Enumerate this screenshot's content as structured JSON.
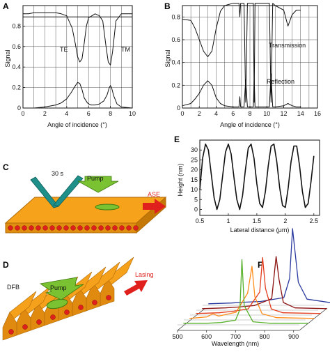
{
  "chart_data": [
    {
      "panel": "A",
      "type": "line",
      "xlabel": "Angle of incidence (°)",
      "ylabel": "Signal",
      "xlim": [
        0,
        10
      ],
      "ylim": [
        0,
        1
      ],
      "xticks": [
        0,
        2,
        4,
        6,
        8,
        10
      ],
      "yticks": [
        0,
        0.2,
        0.4,
        0.6,
        0.8
      ],
      "grid": true,
      "annotations": [
        "TE",
        "TM"
      ],
      "series": [
        {
          "x": [
            0,
            0.5,
            1,
            2,
            3,
            3.5,
            4,
            4.5,
            4.8,
            5,
            5.2,
            5.4,
            5.6,
            5.8,
            6,
            6.3,
            6.6,
            7,
            7.3,
            7.6,
            7.8,
            8,
            8.2,
            8.5,
            9,
            9.5,
            10
          ],
          "values": [
            0.92,
            0.92,
            0.93,
            0.93,
            0.93,
            0.92,
            0.9,
            0.78,
            0.62,
            0.5,
            0.45,
            0.48,
            0.63,
            0.8,
            0.88,
            0.9,
            0.92,
            0.9,
            0.85,
            0.6,
            0.45,
            0.42,
            0.55,
            0.85,
            0.92,
            0.92,
            0.92
          ]
        },
        {
          "x": [
            0,
            0.5,
            1,
            2,
            3,
            3.5,
            4,
            4.4,
            4.8,
            5,
            5.2,
            5.4,
            5.6,
            5.9,
            6.2,
            6.6,
            7,
            7.4,
            7.7,
            7.9,
            8,
            8.1,
            8.3,
            8.6,
            9,
            10
          ],
          "values": [
            0.89,
            0.89,
            0.89,
            0.89,
            0.89,
            0.89,
            0.89,
            0.89,
            0.89,
            0.89,
            0.89,
            0.89,
            0.89,
            0.89,
            0.89,
            0.89,
            0.89,
            0.89,
            0.89,
            0.89,
            0.89,
            0.89,
            0.89,
            0.89,
            0.89,
            0.89
          ]
        },
        {
          "x": [
            0,
            1,
            2,
            3,
            3.5,
            4,
            4.4,
            4.8,
            5,
            5.2,
            5.4,
            5.6,
            5.9,
            6.2,
            6.6,
            7,
            7.4,
            7.7,
            7.9,
            8,
            8.1,
            8.3,
            8.6,
            9,
            10
          ],
          "values": [
            0,
            0,
            0.01,
            0.03,
            0.05,
            0.09,
            0.15,
            0.22,
            0.25,
            0.24,
            0.18,
            0.1,
            0.05,
            0.03,
            0.03,
            0.04,
            0.07,
            0.13,
            0.2,
            0.22,
            0.2,
            0.12,
            0.04,
            0.01,
            0
          ]
        }
      ]
    },
    {
      "panel": "B",
      "type": "line",
      "xlabel": "Angle of incidence (°)",
      "ylabel": "Signal",
      "xlim": [
        0,
        16
      ],
      "ylim": [
        0,
        0.9
      ],
      "xticks": [
        0,
        2,
        4,
        6,
        8,
        10,
        12,
        14,
        16
      ],
      "yticks": [
        0,
        0.2,
        0.4,
        0.6,
        0.8
      ],
      "grid": true,
      "annotations": [
        "Transmission",
        "Reflection"
      ],
      "series": [
        {
          "name": "Transmission",
          "x": [
            0,
            1,
            1.5,
            2,
            2.5,
            3,
            3.5,
            4,
            4.5,
            5,
            6,
            6.7,
            6.8,
            6.9,
            7,
            7.3,
            7.5,
            7.7,
            8,
            8.2,
            8.4,
            8.5,
            8.6,
            8.8,
            9,
            10,
            10.3,
            10.5,
            10.7,
            11,
            12,
            12.5,
            13,
            13.5,
            14
          ],
          "values": [
            0.78,
            0.77,
            0.7,
            0.6,
            0.5,
            0.45,
            0.5,
            0.7,
            0.85,
            0.9,
            0.92,
            0.92,
            0.8,
            0.92,
            0.92,
            0.92,
            0.05,
            0.92,
            0.92,
            0.92,
            0.92,
            0.05,
            0.92,
            0.92,
            0.92,
            0.92,
            0.92,
            0.05,
            0.92,
            0.9,
            0.86,
            0.72,
            0.82,
            0.86,
            0.86
          ]
        },
        {
          "name": "Reflection",
          "x": [
            0,
            1,
            1.5,
            2,
            2.5,
            3,
            3.5,
            4,
            4.5,
            5,
            6,
            6.7,
            6.8,
            6.9,
            7,
            7.3,
            7.5,
            7.7,
            8,
            8.2,
            8.4,
            8.5,
            8.6,
            8.8,
            9,
            10,
            10.3,
            10.5,
            10.7,
            11,
            12,
            12.5,
            13,
            13.5,
            14
          ],
          "values": [
            0.02,
            0.04,
            0.08,
            0.13,
            0.2,
            0.24,
            0.2,
            0.09,
            0.04,
            0.02,
            0.01,
            0.01,
            0.1,
            0.01,
            0.01,
            0.01,
            0.25,
            0.01,
            0.01,
            0.01,
            0.01,
            0.28,
            0.01,
            0.01,
            0.01,
            0.01,
            0.01,
            0.3,
            0.01,
            0.01,
            0.02,
            0.04,
            0.02,
            0.01,
            0.01
          ]
        }
      ]
    },
    {
      "panel": "E",
      "type": "line",
      "xlabel": "Lateral distance (μm)",
      "ylabel": "Height (nm)",
      "xlim": [
        0.5,
        2.6
      ],
      "ylim": [
        -3,
        35
      ],
      "xticks": [
        0.5,
        1,
        1.5,
        2,
        2.5
      ],
      "yticks": [
        0,
        5,
        10,
        15,
        20,
        25,
        30
      ],
      "series": [
        {
          "x": [
            0.5,
            0.55,
            0.6,
            0.65,
            0.7,
            0.75,
            0.8,
            0.85,
            0.9,
            0.95,
            1,
            1.05,
            1.1,
            1.15,
            1.2,
            1.25,
            1.3,
            1.35,
            1.4,
            1.45,
            1.5,
            1.55,
            1.6,
            1.65,
            1.7,
            1.75,
            1.8,
            1.85,
            1.9,
            1.95,
            2,
            2.05,
            2.1,
            2.15,
            2.2,
            2.25,
            2.3,
            2.35,
            2.4,
            2.45,
            2.5
          ],
          "values": [
            10,
            26,
            33,
            30,
            18,
            6,
            0,
            5,
            17,
            29,
            33,
            28,
            16,
            5,
            0,
            7,
            20,
            31,
            33,
            26,
            13,
            3,
            1,
            9,
            22,
            32,
            33,
            24,
            11,
            2,
            1,
            11,
            24,
            32,
            32,
            22,
            9,
            1,
            3,
            14,
            27
          ]
        }
      ]
    },
    {
      "panel": "F",
      "type": "line",
      "xlabel": "Wavelength (nm)",
      "xticks": [
        500,
        600,
        700,
        800,
        900
      ],
      "series": [
        {
          "color": "#2a3a9e",
          "x": [
            520,
            600,
            640,
            700,
            780,
            800,
            810,
            830,
            860,
            950
          ],
          "values": [
            0.02,
            0.03,
            0.04,
            0.05,
            0.1,
            0.35,
            1.0,
            0.3,
            0.08,
            0.03
          ]
        },
        {
          "color": "#8b1010",
          "x": [
            520,
            600,
            640,
            700,
            760,
            775,
            785,
            800,
            840,
            950
          ],
          "values": [
            0.02,
            0.03,
            0.04,
            0.06,
            0.15,
            0.7,
            0.4,
            0.1,
            0.03,
            0.02
          ]
        },
        {
          "color": "#e23a1a",
          "x": [
            520,
            600,
            650,
            700,
            740,
            750,
            760,
            780,
            820,
            950
          ],
          "values": [
            0.02,
            0.03,
            0.05,
            0.08,
            0.3,
            0.75,
            0.35,
            0.08,
            0.03,
            0.02
          ]
        },
        {
          "color": "#ff8c1a",
          "x": [
            520,
            580,
            600,
            620,
            680,
            720,
            735,
            745,
            770,
            820,
            950
          ],
          "values": [
            0.02,
            0.04,
            0.08,
            0.05,
            0.1,
            0.35,
            0.7,
            0.3,
            0.08,
            0.03,
            0.02
          ]
        },
        {
          "color": "#55b02a",
          "x": [
            520,
            600,
            650,
            700,
            715,
            722,
            730,
            760,
            820,
            950
          ],
          "values": [
            0.02,
            0.02,
            0.03,
            0.06,
            0.2,
            0.85,
            0.25,
            0.04,
            0.02,
            0.02
          ]
        }
      ]
    }
  ],
  "panels": {
    "A": {
      "label": "A"
    },
    "B": {
      "label": "B"
    },
    "C": {
      "label": "C",
      "time_label": "30 s",
      "pump_label": "Pump",
      "output_label": "ASE"
    },
    "D": {
      "label": "D",
      "dfb_label": "DFB",
      "pump_label": "Pump",
      "output_label": "Lasing"
    },
    "E": {
      "label": "E"
    },
    "F": {
      "label": "F"
    }
  },
  "colors": {
    "substrate": "#f7a21b",
    "dots": "#e0201c",
    "pump": "#7ac231",
    "arrow": "#e0201c",
    "fiber": "#1f8f8a"
  }
}
